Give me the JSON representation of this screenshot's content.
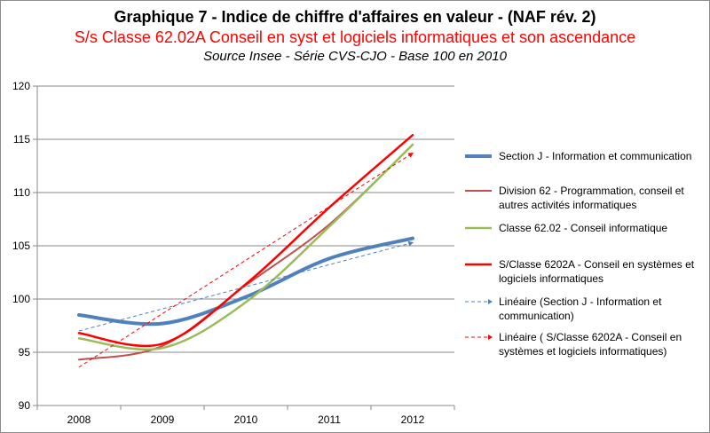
{
  "title": "Graphique 7 - Indice de chiffre d'affaires en valeur - (NAF rév. 2)",
  "subtitle": "S/s Classe 62.02A Conseil en syst et logiciels informatiques et son ascendance",
  "source": "Source Insee - Série CVS-CJO - Base 100 en 2010",
  "chart_data": {
    "type": "line",
    "categories": [
      "2008",
      "2009",
      "2010",
      "2011",
      "2012"
    ],
    "ylim": [
      90,
      120
    ],
    "yticks": [
      90,
      95,
      100,
      105,
      110,
      115,
      120
    ],
    "grid": true,
    "legend_position": "right",
    "series": [
      {
        "name": "Section J - Information et communication",
        "values": [
          98.5,
          97.7,
          100.2,
          103.8,
          105.7
        ],
        "color": "#4f81bd",
        "style": "solid",
        "width": 4
      },
      {
        "name": "Division 62 - Programmation, conseil et autres activités informatiques",
        "values": [
          94.3,
          95.6,
          101.3,
          107.0,
          114.5
        ],
        "color": "#c0504d",
        "style": "solid",
        "width": 2
      },
      {
        "name": "Classe 62.02 - Conseil informatique",
        "values": [
          96.3,
          95.4,
          99.7,
          106.8,
          114.5
        ],
        "color": "#9bbb59",
        "style": "solid",
        "width": 2.5
      },
      {
        "name": "S/Classe 6202A - Conseil en systèmes et logiciels informatiques",
        "values": [
          96.8,
          95.8,
          101.4,
          108.6,
          115.4
        ],
        "color": "#ff0000",
        "style": "solid",
        "width": 2.5
      },
      {
        "name": "Linéaire (Section J - Information et communication)",
        "values": [
          97.0,
          99.1,
          101.1,
          103.2,
          105.3
        ],
        "color": "#4f81bd",
        "style": "dashed",
        "width": 1
      },
      {
        "name": "Linéaire ( S/Classe 6202A - Conseil en systèmes et logiciels informatiques)",
        "values": [
          93.6,
          98.6,
          103.7,
          108.7,
          113.7
        ],
        "color": "#ff0000",
        "style": "dashed",
        "width": 1
      }
    ]
  }
}
